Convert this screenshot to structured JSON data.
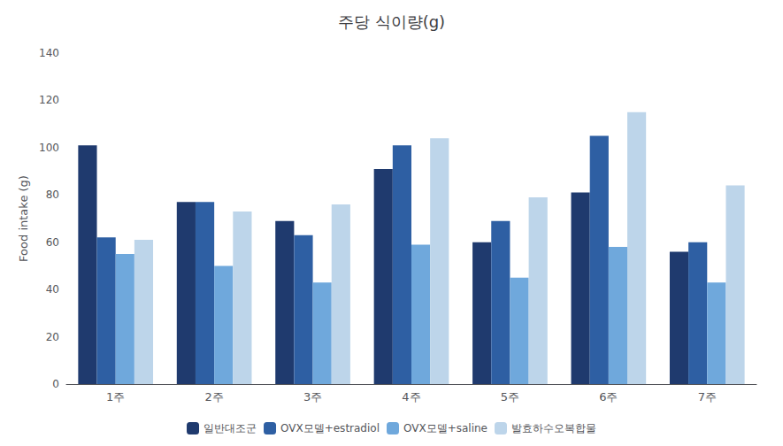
{
  "chart_data": {
    "type": "bar",
    "title": "주당 식이량(g)",
    "ylabel": "Food intake (g)",
    "categories": [
      "1주",
      "2주",
      "3주",
      "4주",
      "5주",
      "6주",
      "7주"
    ],
    "series": [
      {
        "name": "일반대조군",
        "color": "#1f3a6e",
        "values": [
          101,
          77,
          69,
          91,
          60,
          81,
          56
        ]
      },
      {
        "name": "OVX모델+estradiol",
        "color": "#2e5fa3",
        "values": [
          62,
          77,
          63,
          101,
          69,
          105,
          60
        ]
      },
      {
        "name": "OVX모델+saline",
        "color": "#6fa8dc",
        "values": [
          55,
          50,
          43,
          59,
          45,
          58,
          43
        ]
      },
      {
        "name": "발효하수오복합물",
        "color": "#bdd5ea",
        "values": [
          61,
          73,
          76,
          104,
          79,
          115,
          84
        ]
      }
    ],
    "ylim": [
      0,
      140
    ],
    "yticks": [
      0,
      20,
      40,
      60,
      80,
      100,
      120,
      140
    ],
    "grid": false,
    "legend": "bottom"
  }
}
